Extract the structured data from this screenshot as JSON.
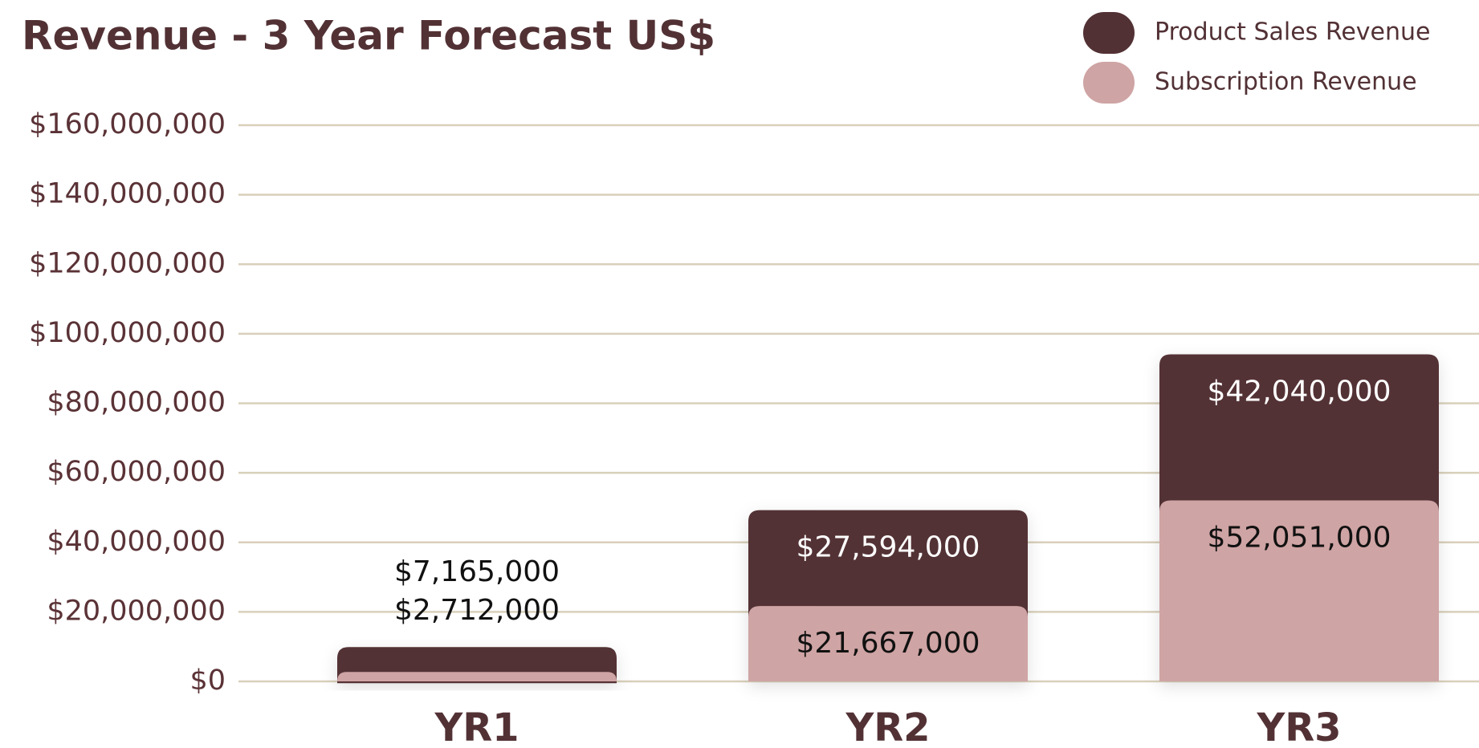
{
  "chart_data": {
    "type": "stacked_bar",
    "title": "Revenue - 3 Year Forecast US$",
    "categories": [
      "YR1",
      "YR2",
      "YR3"
    ],
    "series": [
      {
        "name": "Product Sales Revenue",
        "color": "#523135",
        "values": [
          7165000,
          27594000,
          42040000
        ],
        "value_labels": [
          "$7,165,000",
          "$27,594,000",
          "$42,040,000"
        ]
      },
      {
        "name": "Subscription Revenue",
        "color": "#cfa4a4",
        "values": [
          2712000,
          21667000,
          52051000
        ],
        "value_labels": [
          "$2,712,000",
          "$21,667,000",
          "$52,051,000"
        ]
      }
    ],
    "ylim": [
      0,
      160000000
    ],
    "yticks": [
      {
        "value": 0,
        "label": "$0"
      },
      {
        "value": 20000000,
        "label": "$20,000,000"
      },
      {
        "value": 40000000,
        "label": "$40,000,000"
      },
      {
        "value": 60000000,
        "label": "$60,000,000"
      },
      {
        "value": 80000000,
        "label": "$80,000,000"
      },
      {
        "value": 100000000,
        "label": "$100,000,000"
      },
      {
        "value": 120000000,
        "label": "$120,000,000"
      },
      {
        "value": 140000000,
        "label": "$140,000,000"
      },
      {
        "value": 160000000,
        "label": "$160,000,000"
      }
    ],
    "grid": true,
    "legend": "top-right"
  }
}
